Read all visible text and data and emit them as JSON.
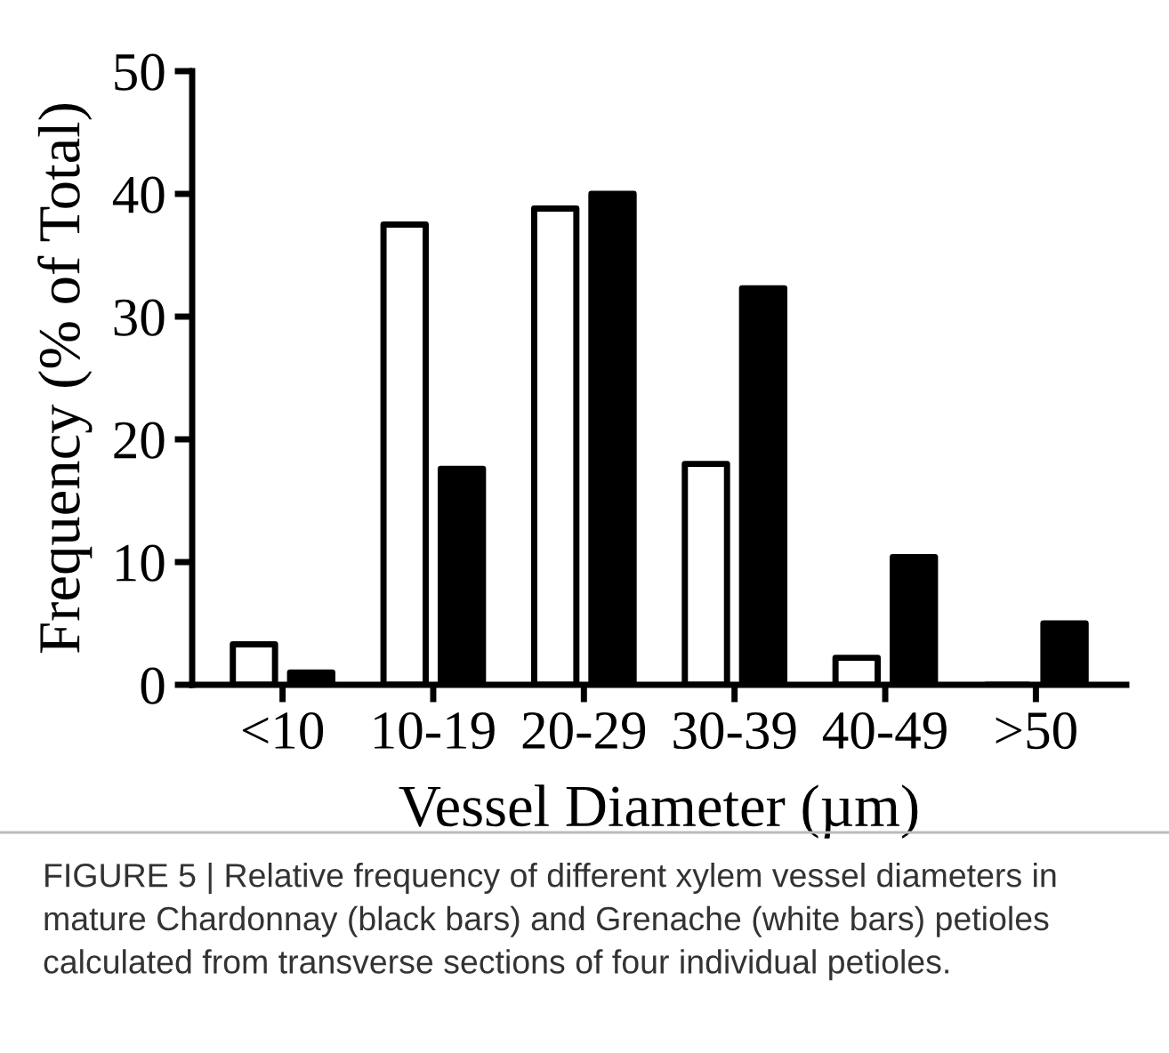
{
  "chart_data": {
    "type": "bar",
    "categories": [
      "<10",
      "10-19",
      "20-29",
      "30-39",
      "40-49",
      ">50"
    ],
    "series": [
      {
        "color": "#ffffff",
        "values": [
          3.3,
          37.5,
          38.8,
          18,
          2.2,
          0
        ]
      },
      {
        "color": "#000000",
        "values": [
          1,
          17.6,
          40,
          32.3,
          10.4,
          5
        ]
      }
    ],
    "xlabel": "Vessel Diameter (µm)",
    "ylabel": "Frequency (% of Total)",
    "ylim": [
      0,
      50
    ],
    "yticks": [
      0,
      10,
      20,
      30,
      40,
      50
    ],
    "grid": false,
    "legend": false,
    "annotations": [
      "FIGURE 5 | Relative frequency of different xylem vessel diameters in mature Chardonnay (black bars) and Grenache (white bars) petioles calculated from transverse sections of four individual petioles."
    ]
  }
}
